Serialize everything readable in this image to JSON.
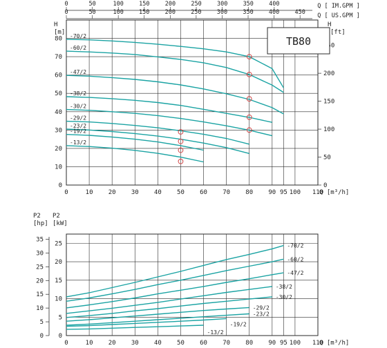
{
  "chart_data": [
    {
      "type": "line",
      "title": "TB80",
      "top_axes": [
        {
          "label": "Q [ IM.GPM ]",
          "ticks": [
            "0",
            "50",
            "100",
            "150",
            "200",
            "250",
            "300",
            "350",
            "400"
          ]
        },
        {
          "label": "Q [ US.GPM ]",
          "ticks": [
            "0",
            "50",
            "100",
            "150",
            "200",
            "250",
            "300",
            "350",
            "400",
            "450"
          ]
        }
      ],
      "xlabel": "Q [m³/h]",
      "xlim": [
        0,
        110
      ],
      "xticks": [
        "0",
        "10",
        "20",
        "30",
        "40",
        "50",
        "60",
        "70",
        "80",
        "90",
        "95",
        "100",
        "110"
      ],
      "y_left": {
        "label": "H [m]",
        "ticks": [
          "0",
          "10",
          "20",
          "30",
          "40",
          "50",
          "60",
          "70",
          "80"
        ],
        "ylim": [
          0,
          90
        ]
      },
      "y_right": {
        "label": "H [ft]",
        "ticks": [
          "0",
          "50",
          "100",
          "150",
          "200",
          "250"
        ]
      },
      "series": [
        {
          "name": "-70/2",
          "x": [
            0,
            10,
            20,
            30,
            40,
            50,
            60,
            70,
            80,
            90,
            95
          ],
          "y": [
            79.5,
            79.2,
            78.6,
            77.8,
            76.8,
            75.6,
            74.3,
            72.6,
            70,
            63.5,
            53
          ]
        },
        {
          "name": "-60/2",
          "x": [
            0,
            10,
            20,
            30,
            40,
            50,
            60,
            70,
            80,
            90,
            95
          ],
          "y": [
            73,
            72.6,
            72,
            71.2,
            69.9,
            68.5,
            66.7,
            64.1,
            60.3,
            54.5,
            50.5
          ]
        },
        {
          "name": "-47/2",
          "x": [
            0,
            10,
            20,
            30,
            40,
            50,
            60,
            70,
            80,
            90,
            95
          ],
          "y": [
            59.8,
            59.4,
            58.6,
            57.6,
            56.3,
            54.6,
            52.4,
            49.8,
            46.7,
            42.2,
            38.8
          ]
        },
        {
          "name": "-38/2",
          "x": [
            0,
            10,
            20,
            30,
            40,
            50,
            60,
            70,
            80,
            90
          ],
          "y": [
            48.2,
            47.8,
            47.1,
            46.2,
            45,
            43.4,
            41.3,
            39.1,
            36.9,
            34.2
          ]
        },
        {
          "name": "-30/2",
          "x": [
            0,
            10,
            20,
            30,
            40,
            50,
            60,
            70,
            80,
            90
          ],
          "y": [
            41.2,
            40.8,
            40,
            39.1,
            37.9,
            36.3,
            34.4,
            32.3,
            29.9,
            26.9
          ]
        },
        {
          "name": "-29/2",
          "x": [
            0,
            10,
            20,
            30,
            40,
            50,
            60,
            70,
            80
          ],
          "y": [
            34.8,
            34.4,
            33.6,
            32.5,
            31.2,
            29.6,
            27.7,
            25.4,
            22.3
          ]
        },
        {
          "name": "-23/2",
          "x": [
            0,
            10,
            20,
            30,
            40,
            50,
            60,
            70,
            80
          ],
          "y": [
            30.5,
            30,
            29.2,
            28.1,
            26.7,
            25,
            22.9,
            20.4,
            17.2
          ]
        },
        {
          "name": "-19/2",
          "x": [
            0,
            10,
            20,
            30,
            40,
            50,
            60
          ],
          "y": [
            27.6,
            27.1,
            26.2,
            25,
            23.5,
            21.5,
            19
          ]
        },
        {
          "name": "-13/2",
          "x": [
            0,
            10,
            20,
            30,
            40,
            50,
            60
          ],
          "y": [
            21.5,
            21,
            20.1,
            18.9,
            17.3,
            15.2,
            12.6
          ]
        }
      ],
      "markers": [
        {
          "x": 50,
          "y": 12.9
        },
        {
          "x": 50,
          "y": 19
        },
        {
          "x": 50,
          "y": 23.8
        },
        {
          "x": 50,
          "y": 29
        },
        {
          "x": 80,
          "y": 30
        },
        {
          "x": 80,
          "y": 37
        },
        {
          "x": 80,
          "y": 47
        },
        {
          "x": 80,
          "y": 60.3
        },
        {
          "x": 80,
          "y": 70
        }
      ]
    },
    {
      "type": "line",
      "xlabel": "Q [m³/h]",
      "xlim": [
        0,
        110
      ],
      "xticks": [
        "0",
        "10",
        "20",
        "30",
        "40",
        "50",
        "60",
        "70",
        "80",
        "90",
        "95",
        "100",
        "110"
      ],
      "y_left": {
        "label": "P2 [hp]",
        "ticks": [
          "0",
          "5",
          "10",
          "15",
          "20",
          "25",
          "30",
          "35"
        ]
      },
      "y_right": {
        "label": "P2 [kW]",
        "ticks": [
          "0",
          "5",
          "10",
          "15",
          "20",
          "25"
        ],
        "ylim": [
          0,
          27.5
        ]
      },
      "series": [
        {
          "name": "-70/2",
          "x": [
            0,
            10,
            20,
            30,
            40,
            50,
            60,
            70,
            80,
            90,
            95
          ],
          "y": [
            10.5,
            11.6,
            13,
            14.4,
            15.9,
            17.4,
            19,
            20.6,
            22,
            23.5,
            24.4
          ]
        },
        {
          "name": "-60/2",
          "x": [
            0,
            10,
            20,
            30,
            40,
            50,
            60,
            70,
            80,
            90,
            95
          ],
          "y": [
            9.3,
            10.2,
            11.3,
            12.5,
            13.8,
            15,
            16.3,
            17.6,
            18.8,
            20,
            20.7
          ]
        },
        {
          "name": "-47/2",
          "x": [
            0,
            10,
            20,
            30,
            40,
            50,
            60,
            70,
            80,
            90,
            95
          ],
          "y": [
            7.5,
            8.3,
            9.2,
            10.2,
            11.3,
            12.3,
            13.3,
            14.4,
            15.4,
            16.5,
            17
          ]
        },
        {
          "name": "-38/2",
          "x": [
            0,
            10,
            20,
            30,
            40,
            50,
            60,
            70,
            80,
            90
          ],
          "y": [
            6,
            6.7,
            7.4,
            8.2,
            9,
            9.9,
            10.8,
            11.7,
            12.5,
            13.3
          ]
        },
        {
          "name": "-30/2",
          "x": [
            0,
            10,
            20,
            30,
            40,
            50,
            60,
            70,
            80,
            90
          ],
          "y": [
            4.9,
            5.4,
            6,
            6.7,
            7.3,
            8,
            8.7,
            9.3,
            9.9,
            10.5
          ]
        },
        {
          "name": "-29/2",
          "x": [
            0,
            10,
            20,
            30,
            40,
            50,
            60,
            70,
            80
          ],
          "y": [
            3.9,
            4.3,
            4.8,
            5.3,
            5.8,
            6.3,
            6.8,
            7.2,
            7.6
          ]
        },
        {
          "name": "-23/2",
          "x": [
            0,
            10,
            20,
            30,
            40,
            50,
            60,
            70,
            80
          ],
          "y": [
            2.8,
            3.1,
            3.5,
            3.9,
            4.3,
            4.7,
            5.1,
            5.5,
            5.9
          ]
        },
        {
          "name": "-19/2",
          "x": [
            0,
            10,
            20,
            30,
            40,
            50,
            60,
            70
          ],
          "y": [
            2.5,
            2.7,
            3,
            3.3,
            3.6,
            3.9,
            4.2,
            4.6
          ]
        },
        {
          "name": "-13/2",
          "x": [
            0,
            10,
            20,
            30,
            40,
            50,
            60
          ],
          "y": [
            1.7,
            1.8,
            2,
            2.2,
            2.4,
            2.6,
            2.8
          ]
        }
      ]
    }
  ],
  "colors": {
    "curve": "#1aa3a3",
    "grid": "#2a2a2a",
    "marker": "#d04848",
    "text": "#222222"
  }
}
